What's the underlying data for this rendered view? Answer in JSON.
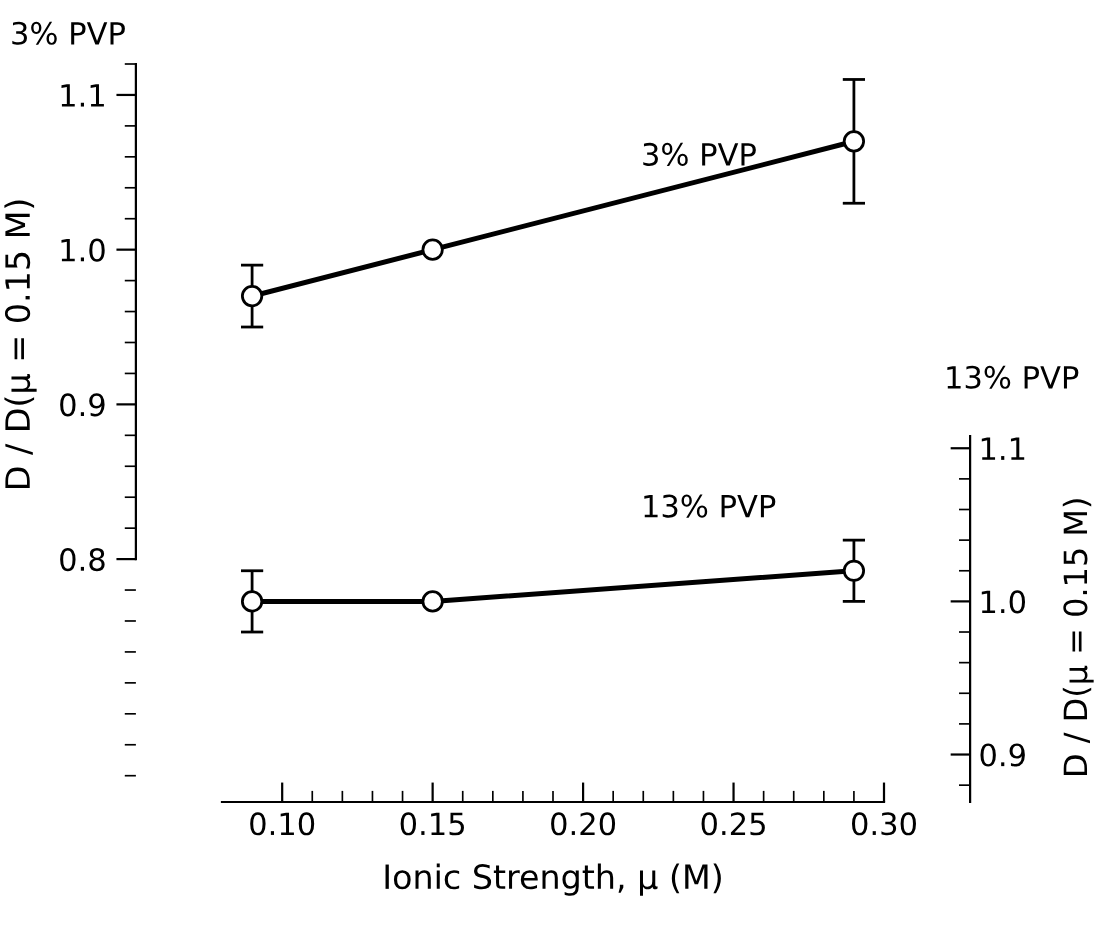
{
  "chart_data": {
    "type": "line",
    "xlabel": "Ionic Strength, μ (M)",
    "ylabel": "D / D(μ = 0.15 M)",
    "y2label": "D / D(μ = 0.15 M)",
    "annotations": [
      "3% PVP",
      "13% PVP"
    ],
    "x": [
      0.09,
      0.15,
      0.29
    ],
    "series": [
      {
        "name": "3% PVP",
        "color": "#000000",
        "values": [
          0.97,
          1.0,
          1.07
        ],
        "errors": [
          0.02,
          null,
          0.04
        ]
      },
      {
        "name": "13% PVP",
        "color": "#000000",
        "values": [
          1.0,
          1.0,
          1.02
        ],
        "errors": [
          0.02,
          null,
          0.02
        ],
        "axis": "y2"
      }
    ],
    "marker": "circle",
    "line_style": "solid",
    "grid": false,
    "legend": false,
    "xlim": [
      0.08,
      0.3
    ],
    "xticks": [
      {
        "value": 0.1,
        "label": "0.10"
      },
      {
        "value": 0.11,
        "label": null
      },
      {
        "value": 0.12,
        "label": null
      },
      {
        "value": 0.13,
        "label": null
      },
      {
        "value": 0.14,
        "label": null
      },
      {
        "value": 0.15,
        "label": "0.15"
      },
      {
        "value": 0.16,
        "label": null
      },
      {
        "value": 0.17,
        "label": null
      },
      {
        "value": 0.18,
        "label": null
      },
      {
        "value": 0.19,
        "label": null
      },
      {
        "value": 0.2,
        "label": "0.20"
      },
      {
        "value": 0.21,
        "label": null
      },
      {
        "value": 0.22,
        "label": null
      },
      {
        "value": 0.23,
        "label": null
      },
      {
        "value": 0.24,
        "label": null
      },
      {
        "value": 0.25,
        "label": "0.25"
      },
      {
        "value": 0.26,
        "label": null
      },
      {
        "value": 0.27,
        "label": null
      },
      {
        "value": 0.28,
        "label": null
      },
      {
        "value": 0.29,
        "label": null
      },
      {
        "value": 0.3,
        "label": "0.30"
      }
    ],
    "ylim": [
      0.643,
      1.12
    ],
    "yticks": [
      {
        "value": 0.8,
        "label": "0.8"
      },
      {
        "value": 0.9,
        "label": "0.9"
      },
      {
        "value": 1.0,
        "label": "1.0"
      },
      {
        "value": 1.1,
        "label": "1.1"
      }
    ],
    "y2lim": [
      0.869,
      1.108
    ],
    "y2ticks": [
      {
        "value": 0.9,
        "label": "0.9"
      },
      {
        "value": 1.0,
        "label": "1.0"
      },
      {
        "value": 1.1,
        "label": "1.1"
      }
    ]
  }
}
